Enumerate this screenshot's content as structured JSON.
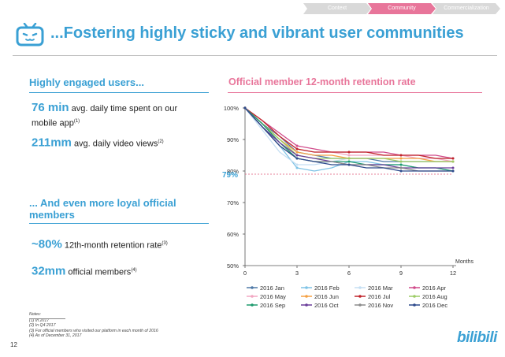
{
  "nav": {
    "tabs": [
      {
        "label": "Context",
        "active": false
      },
      {
        "label": "Community",
        "active": true
      },
      {
        "label": "Commercialization",
        "active": false
      }
    ]
  },
  "slide_title": "...Fostering highly sticky and vibrant user communities",
  "engaged": {
    "heading": "Highly engaged users...",
    "stat1_value": "76 min",
    "stat1_text": "avg. daily time spent on our",
    "stat1_text2": "mobile app",
    "stat1_note": "(1)",
    "stat2_value": "211mm",
    "stat2_text": "avg. daily video views",
    "stat2_note": "(2)"
  },
  "loyal": {
    "heading1": "... And even more loyal official",
    "heading2": "members",
    "stat1_value": "~80%",
    "stat1_text": "12th-month retention rate",
    "stat1_note": "(3)",
    "stat2_value": "32mm",
    "stat2_text": "official members",
    "stat2_note": "(4)"
  },
  "notes": {
    "label": "Notes:",
    "items": [
      "(1)    In 2017",
      "(2)    In Q4 2017",
      "(3)    For official members who visited our platform in each month of 2016",
      "(4)    As of December 31, 2017"
    ]
  },
  "page_number": "12",
  "brand_text": "bilibili",
  "colors": {
    "accent": "#3aa0d4",
    "pink": "#e8759a",
    "tab_inactive": "#d9d9d9",
    "tab_active": "#e8759a"
  },
  "chart_data": {
    "type": "line",
    "title": "Official member 12-month retention rate",
    "xlabel": "Months",
    "ylabel": "",
    "x": [
      0,
      1,
      2,
      3,
      4,
      5,
      6,
      7,
      8,
      9,
      10,
      11,
      12
    ],
    "xticks": [
      0,
      3,
      6,
      9,
      12
    ],
    "ylim": [
      50,
      100
    ],
    "yticks": [
      "50%",
      "60%",
      "70%",
      "80%",
      "90%",
      "100%"
    ],
    "reference": {
      "value": 79,
      "label": "79%"
    },
    "legend_position": "bottom",
    "series": [
      {
        "name": "2016 Jan",
        "color": "#4e79a7",
        "values": [
          100,
          95,
          91,
          86,
          85,
          84,
          84,
          84,
          83,
          83,
          83,
          83,
          83
        ]
      },
      {
        "name": "2016 Feb",
        "color": "#7fc3e6",
        "values": [
          100,
          94,
          88,
          81,
          80,
          81,
          83,
          83,
          82,
          82,
          81,
          81,
          80
        ]
      },
      {
        "name": "2016 Mar",
        "color": "#c5dff3",
        "values": [
          100,
          93,
          86,
          82,
          82,
          83,
          84,
          84,
          84,
          84,
          84,
          84,
          84
        ]
      },
      {
        "name": "2016 Apr",
        "color": "#d04a8a",
        "values": [
          100,
          96,
          92,
          88,
          87,
          86,
          86,
          86,
          86,
          85,
          85,
          85,
          84
        ]
      },
      {
        "name": "2016 May",
        "color": "#f2a7c2",
        "values": [
          100,
          96,
          91,
          87,
          86,
          86,
          85,
          85,
          85,
          85,
          84,
          84,
          83
        ]
      },
      {
        "name": "2016 Jun",
        "color": "#f5a142",
        "values": [
          100,
          95,
          90,
          86,
          85,
          85,
          84,
          84,
          84,
          84,
          84,
          83,
          83
        ]
      },
      {
        "name": "2016 Jul",
        "color": "#c0242a",
        "values": [
          100,
          96,
          91,
          87,
          86,
          86,
          86,
          86,
          85,
          85,
          85,
          84,
          84
        ]
      },
      {
        "name": "2016 Aug",
        "color": "#9ccc65",
        "values": [
          100,
          95,
          90,
          85,
          84,
          84,
          84,
          84,
          84,
          83,
          83,
          83,
          83
        ]
      },
      {
        "name": "2016 Sep",
        "color": "#1e9a6e",
        "values": [
          100,
          95,
          89,
          84,
          83,
          83,
          83,
          82,
          82,
          82,
          81,
          81,
          80
        ]
      },
      {
        "name": "2016 Oct",
        "color": "#6a3d9a",
        "values": [
          100,
          94,
          89,
          85,
          84,
          83,
          82,
          82,
          82,
          81,
          81,
          81,
          81
        ]
      },
      {
        "name": "2016 Nov",
        "color": "#8c8c8c",
        "values": [
          100,
          94,
          88,
          84,
          83,
          83,
          82,
          82,
          81,
          81,
          80,
          80,
          80
        ]
      },
      {
        "name": "2016 Dec",
        "color": "#2e4a8c",
        "values": [
          100,
          94,
          88,
          84,
          83,
          82,
          82,
          81,
          81,
          80,
          80,
          80,
          80
        ]
      }
    ]
  }
}
